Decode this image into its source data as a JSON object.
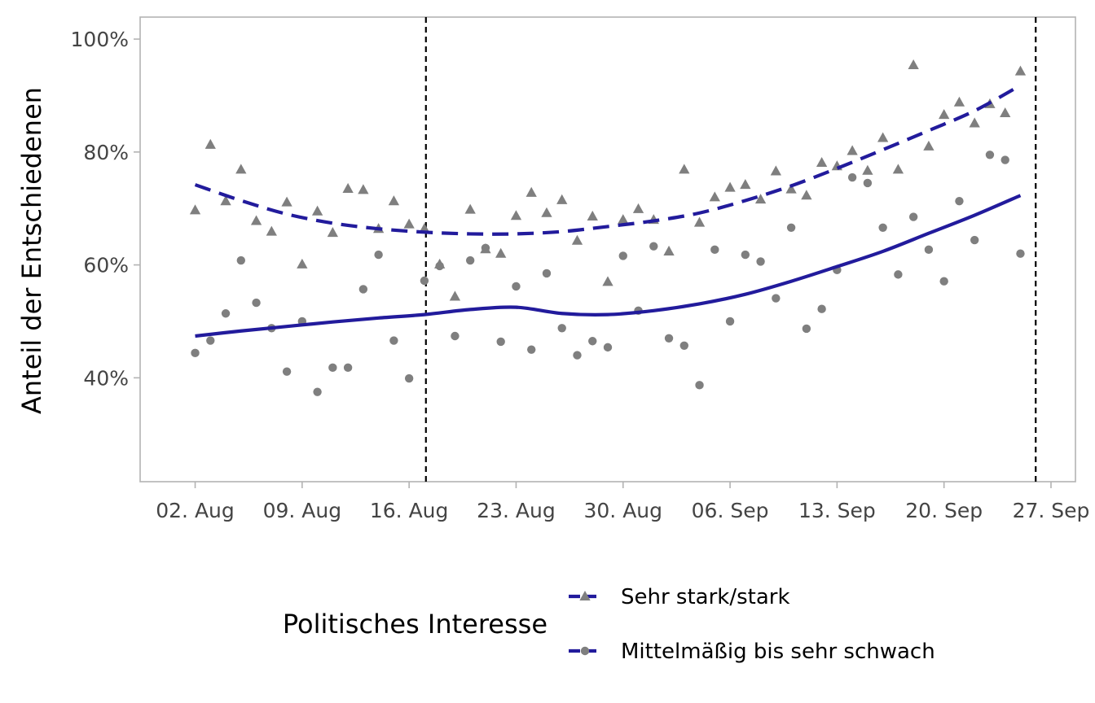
{
  "chart_data": {
    "type": "scatter",
    "ylabel": "Anteil der Entschiedenen",
    "x_tick_labels": [
      "02. Aug",
      "09. Aug",
      "16. Aug",
      "23. Aug",
      "30. Aug",
      "06. Sep",
      "13. Sep",
      "20. Sep",
      "27. Sep"
    ],
    "x_tick_days": [
      0,
      7,
      14,
      21,
      28,
      35,
      42,
      49,
      56
    ],
    "y_tick_labels": [
      "40%",
      "60%",
      "80%",
      "100%"
    ],
    "y_ticks": [
      0.4,
      0.6,
      0.8,
      1.0
    ],
    "xlim": [
      -3.6,
      57.6
    ],
    "ylim": [
      0.216,
      1.039
    ],
    "vlines": [
      15.1,
      55.0
    ],
    "grid": false,
    "legend": {
      "title": "Politisches Interesse",
      "position": "bottom"
    },
    "colors": {
      "line": "#221b9c",
      "points": "#7f7f7f",
      "vline": "#000000",
      "panel_border": "#b3b3b3",
      "tick": "#b3b3b3"
    },
    "series": [
      {
        "name": "Sehr stark/stark",
        "marker": "triangle",
        "line_style": "dashed",
        "points": [
          [
            0,
            0.697
          ],
          [
            1,
            0.813
          ],
          [
            2,
            0.713
          ],
          [
            3,
            0.769
          ],
          [
            4,
            0.678
          ],
          [
            5,
            0.659
          ],
          [
            6,
            0.711
          ],
          [
            7,
            0.601
          ],
          [
            8,
            0.695
          ],
          [
            9,
            0.657
          ],
          [
            10,
            0.735
          ],
          [
            11,
            0.733
          ],
          [
            12,
            0.664
          ],
          [
            13,
            0.713
          ],
          [
            14,
            0.672
          ],
          [
            15,
            0.664
          ],
          [
            16,
            0.601
          ],
          [
            17,
            0.544
          ],
          [
            18,
            0.698
          ],
          [
            19,
            0.628
          ],
          [
            20,
            0.62
          ],
          [
            21,
            0.687
          ],
          [
            22,
            0.728
          ],
          [
            23,
            0.692
          ],
          [
            24,
            0.715
          ],
          [
            25,
            0.643
          ],
          [
            26,
            0.686
          ],
          [
            27,
            0.57
          ],
          [
            28,
            0.68
          ],
          [
            29,
            0.699
          ],
          [
            30,
            0.68
          ],
          [
            31,
            0.624
          ],
          [
            32,
            0.769
          ],
          [
            33,
            0.675
          ],
          [
            34,
            0.72
          ],
          [
            35,
            0.737
          ],
          [
            36,
            0.742
          ],
          [
            37,
            0.716
          ],
          [
            38,
            0.766
          ],
          [
            39,
            0.734
          ],
          [
            40,
            0.723
          ],
          [
            41,
            0.781
          ],
          [
            42,
            0.775
          ],
          [
            43,
            0.802
          ],
          [
            44,
            0.767
          ],
          [
            45,
            0.825
          ],
          [
            46,
            0.769
          ],
          [
            47,
            0.954
          ],
          [
            48,
            0.81
          ],
          [
            49,
            0.866
          ],
          [
            50,
            0.888
          ],
          [
            51,
            0.851
          ],
          [
            52,
            0.885
          ],
          [
            53,
            0.869
          ],
          [
            54,
            0.943
          ]
        ],
        "trend": [
          [
            0,
            0.742
          ],
          [
            3,
            0.714
          ],
          [
            6,
            0.69
          ],
          [
            9,
            0.674
          ],
          [
            12,
            0.664
          ],
          [
            15,
            0.658
          ],
          [
            18,
            0.655
          ],
          [
            21,
            0.655
          ],
          [
            24,
            0.659
          ],
          [
            27,
            0.668
          ],
          [
            30,
            0.678
          ],
          [
            33,
            0.692
          ],
          [
            36,
            0.714
          ],
          [
            39,
            0.74
          ],
          [
            42,
            0.771
          ],
          [
            45,
            0.804
          ],
          [
            48,
            0.838
          ],
          [
            51,
            0.873
          ],
          [
            54,
            0.918
          ]
        ]
      },
      {
        "name": "Mittelmäßig bis sehr schwach",
        "marker": "circle",
        "line_style": "solid",
        "points": [
          [
            0,
            0.444
          ],
          [
            1,
            0.466
          ],
          [
            2,
            0.514
          ],
          [
            3,
            0.608
          ],
          [
            4,
            0.533
          ],
          [
            5,
            0.488
          ],
          [
            6,
            0.411
          ],
          [
            7,
            0.5
          ],
          [
            8,
            0.375
          ],
          [
            9,
            0.418
          ],
          [
            10,
            0.418
          ],
          [
            11,
            0.557
          ],
          [
            12,
            0.618
          ],
          [
            13,
            0.466
          ],
          [
            14,
            0.399
          ],
          [
            15,
            0.572
          ],
          [
            16,
            0.598
          ],
          [
            17,
            0.474
          ],
          [
            18,
            0.608
          ],
          [
            19,
            0.63
          ],
          [
            20,
            0.464
          ],
          [
            21,
            0.562
          ],
          [
            22,
            0.45
          ],
          [
            23,
            0.585
          ],
          [
            24,
            0.488
          ],
          [
            25,
            0.44
          ],
          [
            26,
            0.465
          ],
          [
            27,
            0.454
          ],
          [
            28,
            0.616
          ],
          [
            29,
            0.519
          ],
          [
            30,
            0.633
          ],
          [
            31,
            0.47
          ],
          [
            32,
            0.457
          ],
          [
            33,
            0.387
          ],
          [
            34,
            0.627
          ],
          [
            35,
            0.5
          ],
          [
            36,
            0.618
          ],
          [
            37,
            0.606
          ],
          [
            38,
            0.541
          ],
          [
            39,
            0.666
          ],
          [
            40,
            0.487
          ],
          [
            41,
            0.522
          ],
          [
            42,
            0.591
          ],
          [
            43,
            0.755
          ],
          [
            44,
            0.745
          ],
          [
            45,
            0.666
          ],
          [
            46,
            0.583
          ],
          [
            47,
            0.685
          ],
          [
            48,
            0.627
          ],
          [
            49,
            0.571
          ],
          [
            50,
            0.713
          ],
          [
            51,
            0.644
          ],
          [
            52,
            0.795
          ],
          [
            53,
            0.786
          ],
          [
            54,
            0.62
          ]
        ],
        "trend": [
          [
            0,
            0.474
          ],
          [
            3,
            0.483
          ],
          [
            6,
            0.491
          ],
          [
            9,
            0.499
          ],
          [
            12,
            0.506
          ],
          [
            15,
            0.512
          ],
          [
            18,
            0.521
          ],
          [
            21,
            0.525
          ],
          [
            24,
            0.514
          ],
          [
            27,
            0.512
          ],
          [
            30,
            0.519
          ],
          [
            33,
            0.531
          ],
          [
            36,
            0.548
          ],
          [
            39,
            0.571
          ],
          [
            42,
            0.597
          ],
          [
            45,
            0.624
          ],
          [
            48,
            0.656
          ],
          [
            51,
            0.688
          ],
          [
            54,
            0.723
          ]
        ]
      }
    ]
  }
}
